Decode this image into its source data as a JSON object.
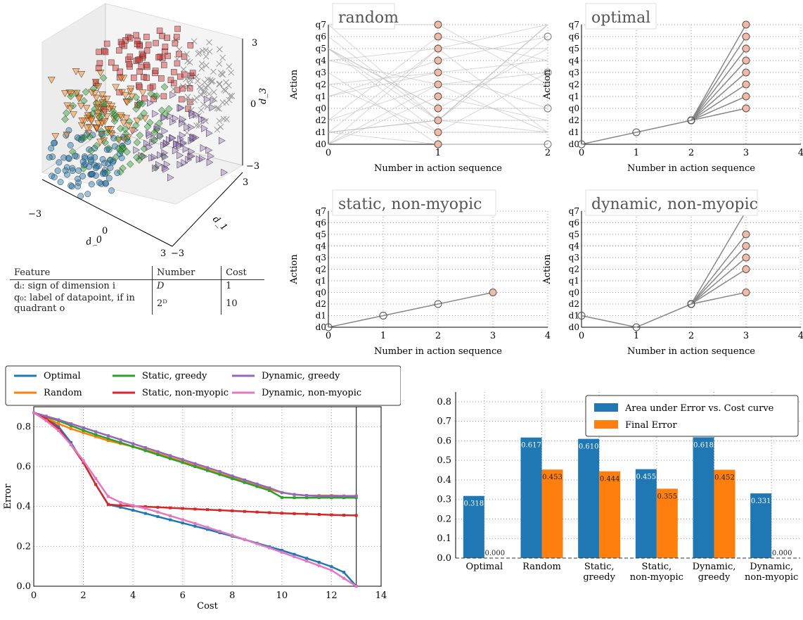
{
  "scatter3d": {
    "axis_d0": "d_0",
    "axis_d1": "d_1",
    "axis_d3": "d_3",
    "tick_neg3": "−3",
    "tick_0": "0",
    "tick_3": "3"
  },
  "feature_table": {
    "headers": [
      "Feature",
      "Number",
      "Cost"
    ],
    "rows": [
      {
        "feature": "dᵢ: sign of dimension i",
        "number": "D",
        "cost": "1"
      },
      {
        "feature": "q₀: label of datapoint, if in quadrant o",
        "number": "2ᴰ",
        "cost": "10"
      }
    ]
  },
  "action_plots": {
    "ylabel": "Action",
    "xlabel": "Number in action sequence",
    "action_labels": [
      "d0",
      "d1",
      "d2",
      "q0",
      "q1",
      "q2",
      "q3",
      "q4",
      "q5",
      "q6",
      "q7"
    ],
    "panels": [
      {
        "title": "random",
        "xticks": [
          "0",
          "1",
          "2"
        ]
      },
      {
        "title": "optimal",
        "xticks": [
          "0",
          "1",
          "2",
          "3",
          "4"
        ]
      },
      {
        "title": "static, non-myopic",
        "xticks": [
          "0",
          "1",
          "2",
          "3",
          "4"
        ]
      },
      {
        "title": "dynamic, non-myopic",
        "xticks": [
          "0",
          "1",
          "2",
          "3",
          "4"
        ]
      }
    ]
  },
  "chart_data": [
    {
      "type": "line",
      "xlabel": "Cost",
      "ylabel": "Error",
      "xlim": [
        0,
        14
      ],
      "ylim": [
        0,
        0.9
      ],
      "xticks": [
        0,
        2,
        4,
        6,
        8,
        10,
        12,
        14
      ],
      "yticks": [
        0.0,
        0.2,
        0.4,
        0.6,
        0.8
      ],
      "grid": true,
      "legend": "top, above plot, 3 columns",
      "x": [
        0,
        0.5,
        1,
        1.5,
        2,
        2.5,
        3,
        3.5,
        4,
        4.5,
        5,
        5.5,
        6,
        6.5,
        7,
        7.5,
        8,
        8.5,
        9,
        9.5,
        10,
        10.5,
        11,
        11.5,
        12,
        12.5,
        13
      ],
      "series": [
        {
          "name": "Optimal",
          "color": "#1f77b4",
          "values": [
            0.87,
            0.845,
            0.8,
            0.72,
            0.62,
            0.51,
            0.41,
            0.396,
            0.381,
            0.365,
            0.349,
            0.333,
            0.317,
            0.301,
            0.285,
            0.268,
            0.251,
            0.234,
            0.216,
            0.198,
            0.18,
            0.16,
            0.14,
            0.12,
            0.098,
            0.07,
            0.0
          ]
        },
        {
          "name": "Random",
          "color": "#ff7f0e",
          "values": [
            0.87,
            0.845,
            0.815,
            0.79,
            0.77,
            0.75,
            0.73,
            0.715,
            0.7,
            0.685,
            0.665,
            0.645,
            0.625,
            0.605,
            0.585,
            0.565,
            0.545,
            0.525,
            0.505,
            0.485,
            0.47,
            0.46,
            0.455,
            0.455,
            0.455,
            0.453,
            0.453
          ]
        },
        {
          "name": "Static, greedy",
          "color": "#2ca02c",
          "values": [
            0.87,
            0.85,
            0.83,
            0.805,
            0.782,
            0.76,
            0.74,
            0.72,
            0.7,
            0.68,
            0.66,
            0.64,
            0.62,
            0.6,
            0.58,
            0.56,
            0.54,
            0.52,
            0.5,
            0.48,
            0.445,
            0.444,
            0.444,
            0.444,
            0.444,
            0.444,
            0.444
          ]
        },
        {
          "name": "Static, non-myopic",
          "color": "#d62728",
          "values": [
            0.87,
            0.84,
            0.79,
            0.71,
            0.62,
            0.51,
            0.41,
            0.405,
            0.402,
            0.399,
            0.396,
            0.393,
            0.39,
            0.387,
            0.384,
            0.381,
            0.378,
            0.375,
            0.372,
            0.369,
            0.366,
            0.364,
            0.362,
            0.36,
            0.358,
            0.356,
            0.355
          ]
        },
        {
          "name": "Dynamic, greedy",
          "color": "#9467bd",
          "values": [
            0.87,
            0.853,
            0.835,
            0.815,
            0.795,
            0.775,
            0.755,
            0.735,
            0.715,
            0.695,
            0.675,
            0.655,
            0.635,
            0.615,
            0.595,
            0.575,
            0.553,
            0.533,
            0.513,
            0.493,
            0.47,
            0.46,
            0.455,
            0.452,
            0.452,
            0.452,
            0.452
          ]
        },
        {
          "name": "Dynamic, non-myopic",
          "color": "#e377c2",
          "values": [
            0.87,
            0.83,
            0.78,
            0.71,
            0.63,
            0.54,
            0.45,
            0.42,
            0.405,
            0.39,
            0.372,
            0.353,
            0.334,
            0.315,
            0.295,
            0.275,
            0.255,
            0.234,
            0.213,
            0.192,
            0.17,
            0.148,
            0.126,
            0.103,
            0.08,
            0.04,
            0.0
          ]
        }
      ]
    },
    {
      "type": "bar",
      "categories": [
        "Optimal",
        "Random",
        "Static, greedy",
        "Static, non-myopic",
        "Dynamic, greedy",
        "Dynamic, non-myopic"
      ],
      "category_lines": [
        [
          "Optimal"
        ],
        [
          "Random"
        ],
        [
          "Static,",
          "greedy"
        ],
        [
          "Static,",
          "non-myopic"
        ],
        [
          "Dynamic,",
          "greedy"
        ],
        [
          "Dynamic,",
          "non-myopic"
        ]
      ],
      "ylim": [
        0,
        0.85
      ],
      "yticks": [
        0.0,
        0.1,
        0.2,
        0.3,
        0.4,
        0.5,
        0.6,
        0.7,
        0.8
      ],
      "grid": true,
      "legend": "top-right",
      "series": [
        {
          "name": "Area under Error vs. Cost curve",
          "color": "#1f77b4",
          "values": [
            0.318,
            0.617,
            0.61,
            0.455,
            0.618,
            0.331
          ],
          "labels": [
            "0.318",
            "0.617",
            "0.610",
            "0.455",
            "0.618",
            "0.331"
          ]
        },
        {
          "name": "Final Error",
          "color": "#ff7f0e",
          "values": [
            0.0,
            0.453,
            0.444,
            0.355,
            0.452,
            0.0
          ],
          "labels": [
            "0.000",
            "0.453",
            "0.444",
            "0.355",
            "0.452",
            "0.000"
          ]
        }
      ]
    }
  ]
}
